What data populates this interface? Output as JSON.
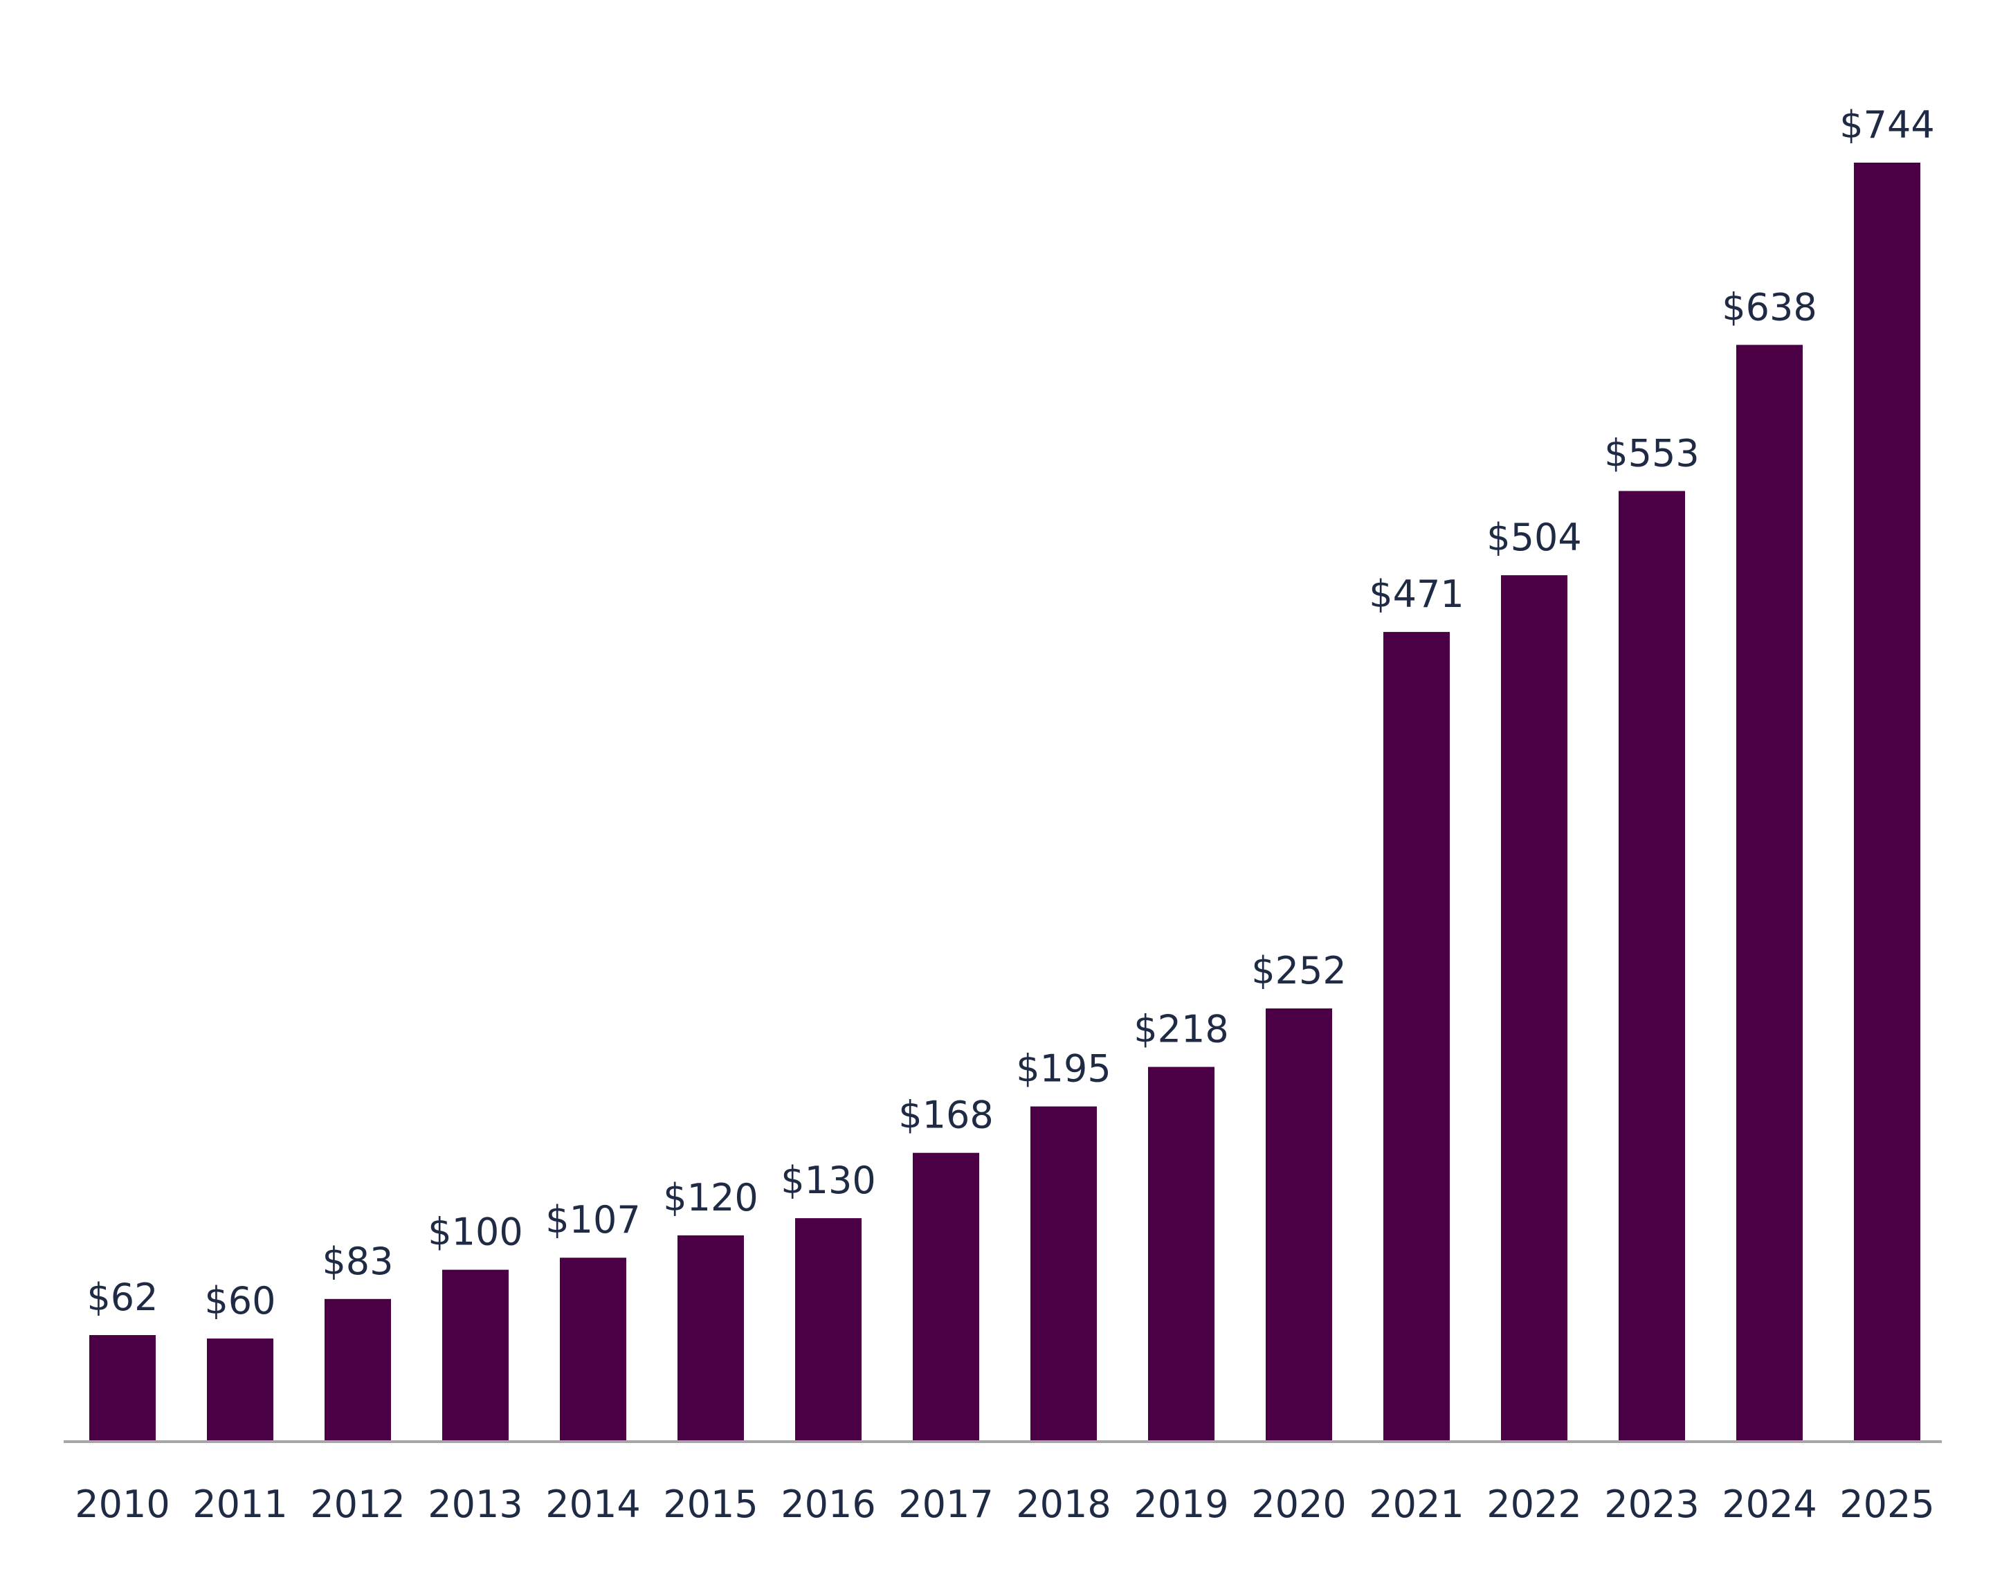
{
  "chart_data": {
    "type": "bar",
    "title": "",
    "xlabel": "",
    "ylabel": "",
    "categories": [
      "2010",
      "2011",
      "2012",
      "2013",
      "2014",
      "2015",
      "2016",
      "2017",
      "2018",
      "2019",
      "2020",
      "2021",
      "2022",
      "2023",
      "2024",
      "2025"
    ],
    "values": [
      62,
      60,
      83,
      100,
      107,
      120,
      130,
      168,
      195,
      218,
      252,
      471,
      504,
      553,
      638,
      744
    ],
    "data_labels": [
      "$62",
      "$60",
      "$83",
      "$100",
      "$107",
      "$120",
      "$130",
      "$168",
      "$195",
      "$218",
      "$252",
      "$471",
      "$504",
      "$553",
      "$638",
      "$744"
    ],
    "ylim": [
      0,
      744
    ],
    "grid": false,
    "legend": "none",
    "bar_color": "#4b0045",
    "label_color": "#1f2a44",
    "axis_color": "#a6a6a6"
  }
}
